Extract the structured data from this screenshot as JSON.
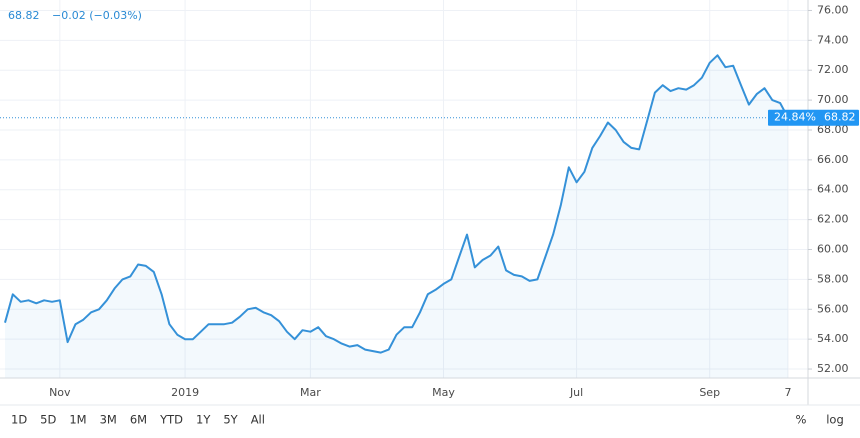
{
  "header": {
    "price": "68.82",
    "change": "−0.02 (−0.03%)"
  },
  "chart_data": {
    "type": "line",
    "categories": [
      null,
      null,
      null,
      null,
      null,
      null,
      null,
      "Nov",
      null,
      null,
      null,
      null,
      null,
      null,
      null,
      null,
      null,
      null,
      null,
      null,
      null,
      null,
      null,
      "2019",
      null,
      null,
      null,
      null,
      null,
      null,
      null,
      null,
      null,
      null,
      null,
      null,
      null,
      null,
      null,
      "Mar",
      null,
      null,
      null,
      null,
      null,
      null,
      null,
      null,
      null,
      null,
      null,
      null,
      null,
      null,
      null,
      null,
      "May",
      null,
      null,
      null,
      null,
      null,
      null,
      null,
      null,
      null,
      null,
      null,
      null,
      null,
      null,
      null,
      null,
      "Jul",
      null,
      null,
      null,
      null,
      null,
      null,
      null,
      null,
      null,
      null,
      null,
      null,
      null,
      null,
      null,
      null,
      "Sep",
      null,
      null,
      null,
      null,
      null,
      null,
      null,
      null,
      null,
      "7"
    ],
    "series": [
      {
        "color": "#3591d8",
        "values": [
          55.1,
          57.0,
          56.5,
          56.6,
          56.4,
          56.6,
          56.5,
          56.6,
          53.8,
          55.0,
          55.3,
          55.8,
          56.0,
          56.6,
          57.4,
          58.0,
          58.2,
          59.0,
          58.9,
          58.5,
          57.0,
          55.0,
          54.3,
          54.0,
          54.0,
          54.5,
          55.0,
          55.0,
          55.0,
          55.1,
          55.5,
          56.0,
          56.1,
          55.8,
          55.6,
          55.2,
          54.5,
          54.0,
          54.6,
          54.5,
          54.8,
          54.2,
          54.0,
          53.7,
          53.5,
          53.6,
          53.3,
          53.2,
          53.1,
          53.3,
          54.3,
          54.8,
          54.8,
          55.8,
          57.0,
          57.3,
          57.7,
          58.0,
          59.5,
          61.0,
          58.8,
          59.3,
          59.6,
          60.2,
          58.6,
          58.3,
          58.2,
          57.9,
          58.0,
          59.5,
          61.0,
          63.0,
          65.5,
          64.5,
          65.2,
          66.8,
          67.6,
          68.5,
          68.0,
          67.2,
          66.8,
          66.7,
          68.6,
          70.5,
          71.0,
          70.6,
          70.8,
          70.7,
          71.0,
          71.5,
          72.5,
          73.0,
          72.2,
          72.3,
          71.0,
          69.7,
          70.4,
          70.8,
          70.0,
          69.8,
          68.82
        ]
      }
    ],
    "ylim": [
      51.4,
      76.7
    ],
    "yticks": [
      {
        "value": 52,
        "label": "52.00"
      },
      {
        "value": 54,
        "label": "54.00"
      },
      {
        "value": 56,
        "label": "56.00"
      },
      {
        "value": 58,
        "label": "58.00"
      },
      {
        "value": 60,
        "label": "60.00"
      },
      {
        "value": 62,
        "label": "62.00"
      },
      {
        "value": 64,
        "label": "64.00"
      },
      {
        "value": 66,
        "label": "66.00"
      },
      {
        "value": 68,
        "label": "68.00"
      },
      {
        "value": 70,
        "label": "70.00"
      },
      {
        "value": 72,
        "label": "72.00"
      },
      {
        "value": 74,
        "label": "74.00"
      },
      {
        "value": 76,
        "label": "76.00"
      }
    ],
    "grid": true,
    "last_price": 68.82,
    "last_percent": "24.84%"
  },
  "toolbar": {
    "ranges": [
      "1D",
      "5D",
      "1M",
      "3M",
      "6M",
      "YTD",
      "1Y",
      "5Y",
      "All"
    ],
    "percent": "%",
    "log": "log"
  }
}
